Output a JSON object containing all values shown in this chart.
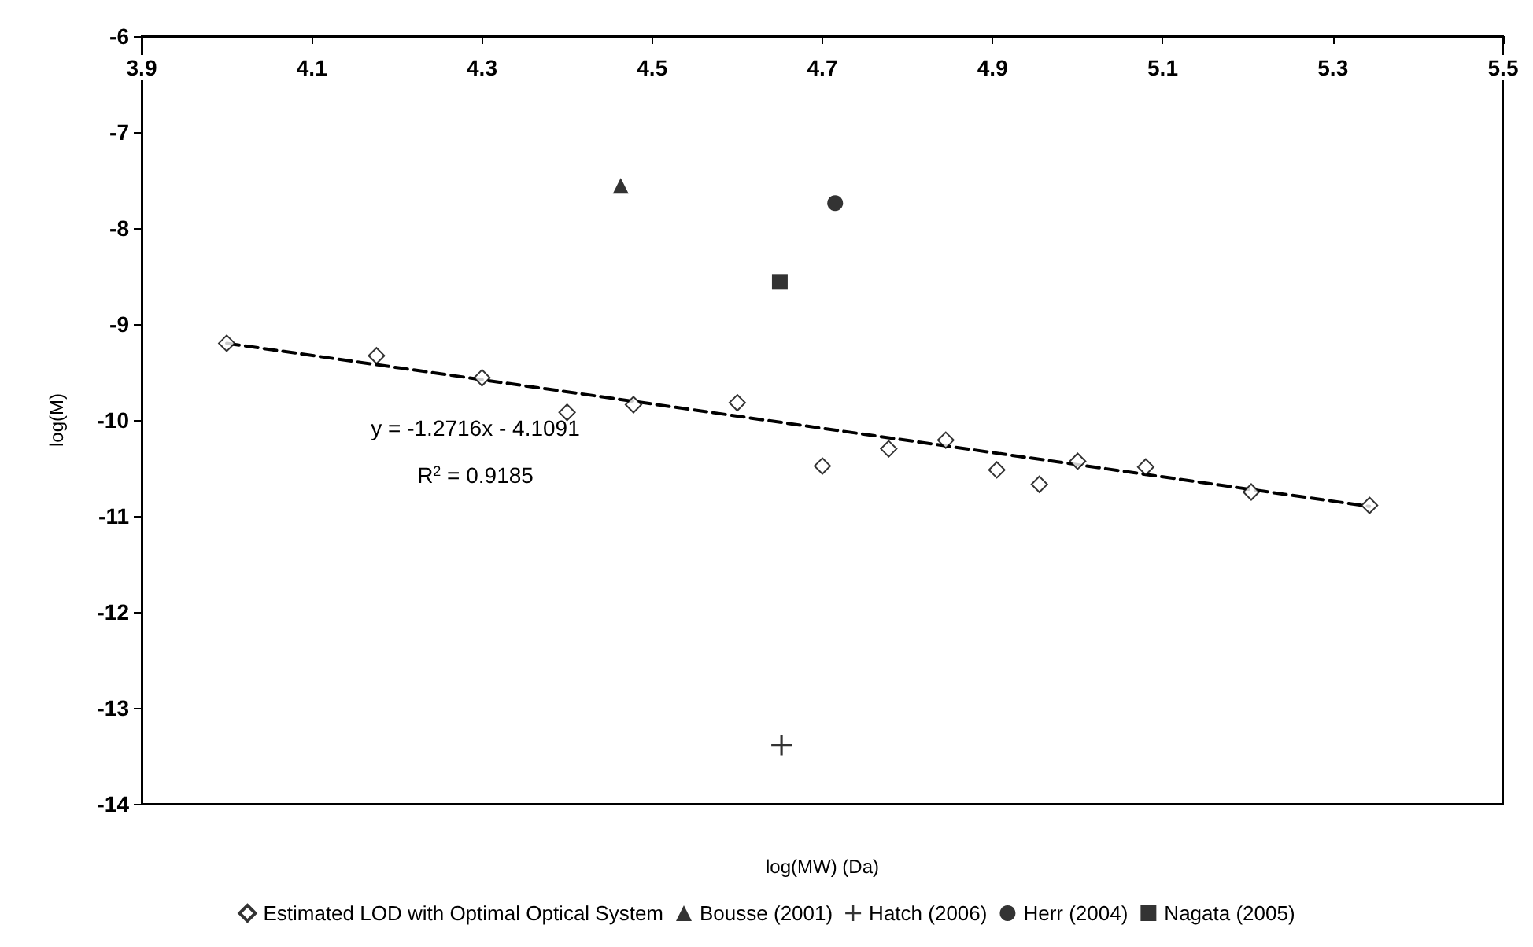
{
  "chart_data": {
    "type": "scatter",
    "xlabel": "log(MW) (Da)",
    "ylabel": "log(M)",
    "xlim": [
      3.9,
      5.5
    ],
    "xticks": [
      3.9,
      4.1,
      4.3,
      4.5,
      4.7,
      4.9,
      5.1,
      5.3,
      5.5
    ],
    "ylim": [
      -14,
      -6
    ],
    "yticks": [
      -14,
      -13,
      -12,
      -11,
      -10,
      -9,
      -8,
      -7,
      -6
    ],
    "grid": false,
    "legend": "bottom",
    "series": [
      {
        "name": "Estimated LOD with Optimal Optical System",
        "color": "#000000",
        "marker": "diamond",
        "x": [
          4.0,
          4.176,
          4.3,
          4.4,
          4.478,
          4.6,
          4.7,
          4.778,
          4.845,
          4.905,
          4.955,
          5.0,
          5.08,
          5.204,
          5.343
        ],
        "values": [
          -9.2,
          -9.33,
          -9.56,
          -9.92,
          -9.84,
          -9.82,
          -10.48,
          -10.3,
          -10.21,
          -10.52,
          -10.67,
          -10.43,
          -10.49,
          -10.75,
          -10.89
        ]
      },
      {
        "name": "Bousse (2001)",
        "color": "#000000",
        "marker": "triangle",
        "x": [
          4.463
        ],
        "values": [
          -7.56
        ]
      },
      {
        "name": "Hatch (2006)",
        "color": "#000000",
        "marker": "cross",
        "x": [
          4.652
        ],
        "values": [
          -13.39
        ]
      },
      {
        "name": "Herr (2004)",
        "color": "#000000",
        "marker": "circle",
        "x": [
          4.715
        ],
        "values": [
          -7.74
        ]
      },
      {
        "name": "Nagata (2005)",
        "color": "#000000",
        "marker": "square",
        "x": [
          4.65
        ],
        "values": [
          -8.56
        ]
      },
      {
        "type": "line",
        "color": "#000000",
        "line_style": "dashed",
        "marker": "none",
        "x": [
          4.0,
          5.343
        ],
        "values": [
          -9.2,
          -10.9
        ]
      }
    ],
    "annotations": [
      "y = -1.2716x - 4.1091",
      "R$^{2}$ = 0.9185"
    ]
  }
}
